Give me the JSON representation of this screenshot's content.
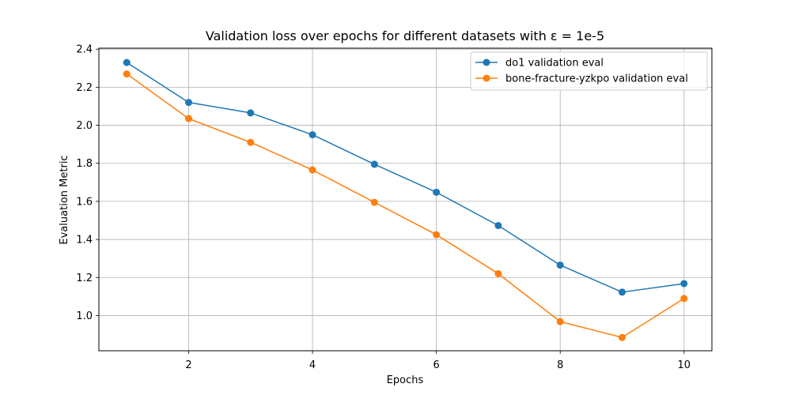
{
  "chart_data": {
    "type": "line",
    "title": "Validation loss over epochs for different datasets with ε = 1e-5",
    "xlabel": "Epochs",
    "ylabel": "Evaluation Metric",
    "x": [
      1,
      2,
      3,
      4,
      5,
      6,
      7,
      8,
      9,
      10
    ],
    "xlim": [
      0.55,
      10.45
    ],
    "ylim": [
      0.815,
      2.405
    ],
    "xticks": [
      2,
      4,
      6,
      8,
      10
    ],
    "yticks": [
      1.0,
      1.2,
      1.4,
      1.6,
      1.8,
      2.0,
      2.2,
      2.4
    ],
    "xtick_labels": [
      "2",
      "4",
      "6",
      "8",
      "10"
    ],
    "ytick_labels": [
      "1.0",
      "1.2",
      "1.4",
      "1.6",
      "1.8",
      "2.0",
      "2.2",
      "2.4"
    ],
    "grid": true,
    "legend_position": "top-right",
    "series": [
      {
        "name": "do1 validation eval",
        "color": "#1f77b4",
        "marker": "circle",
        "values": [
          2.33,
          2.12,
          2.065,
          1.95,
          1.795,
          1.648,
          1.473,
          1.265,
          1.123,
          1.168
        ]
      },
      {
        "name": "bone-fracture-yzkpo validation eval",
        "color": "#ff7f0e",
        "marker": "circle",
        "values": [
          2.27,
          2.035,
          1.91,
          1.765,
          1.595,
          1.425,
          1.22,
          0.968,
          0.885,
          1.09
        ]
      }
    ]
  }
}
